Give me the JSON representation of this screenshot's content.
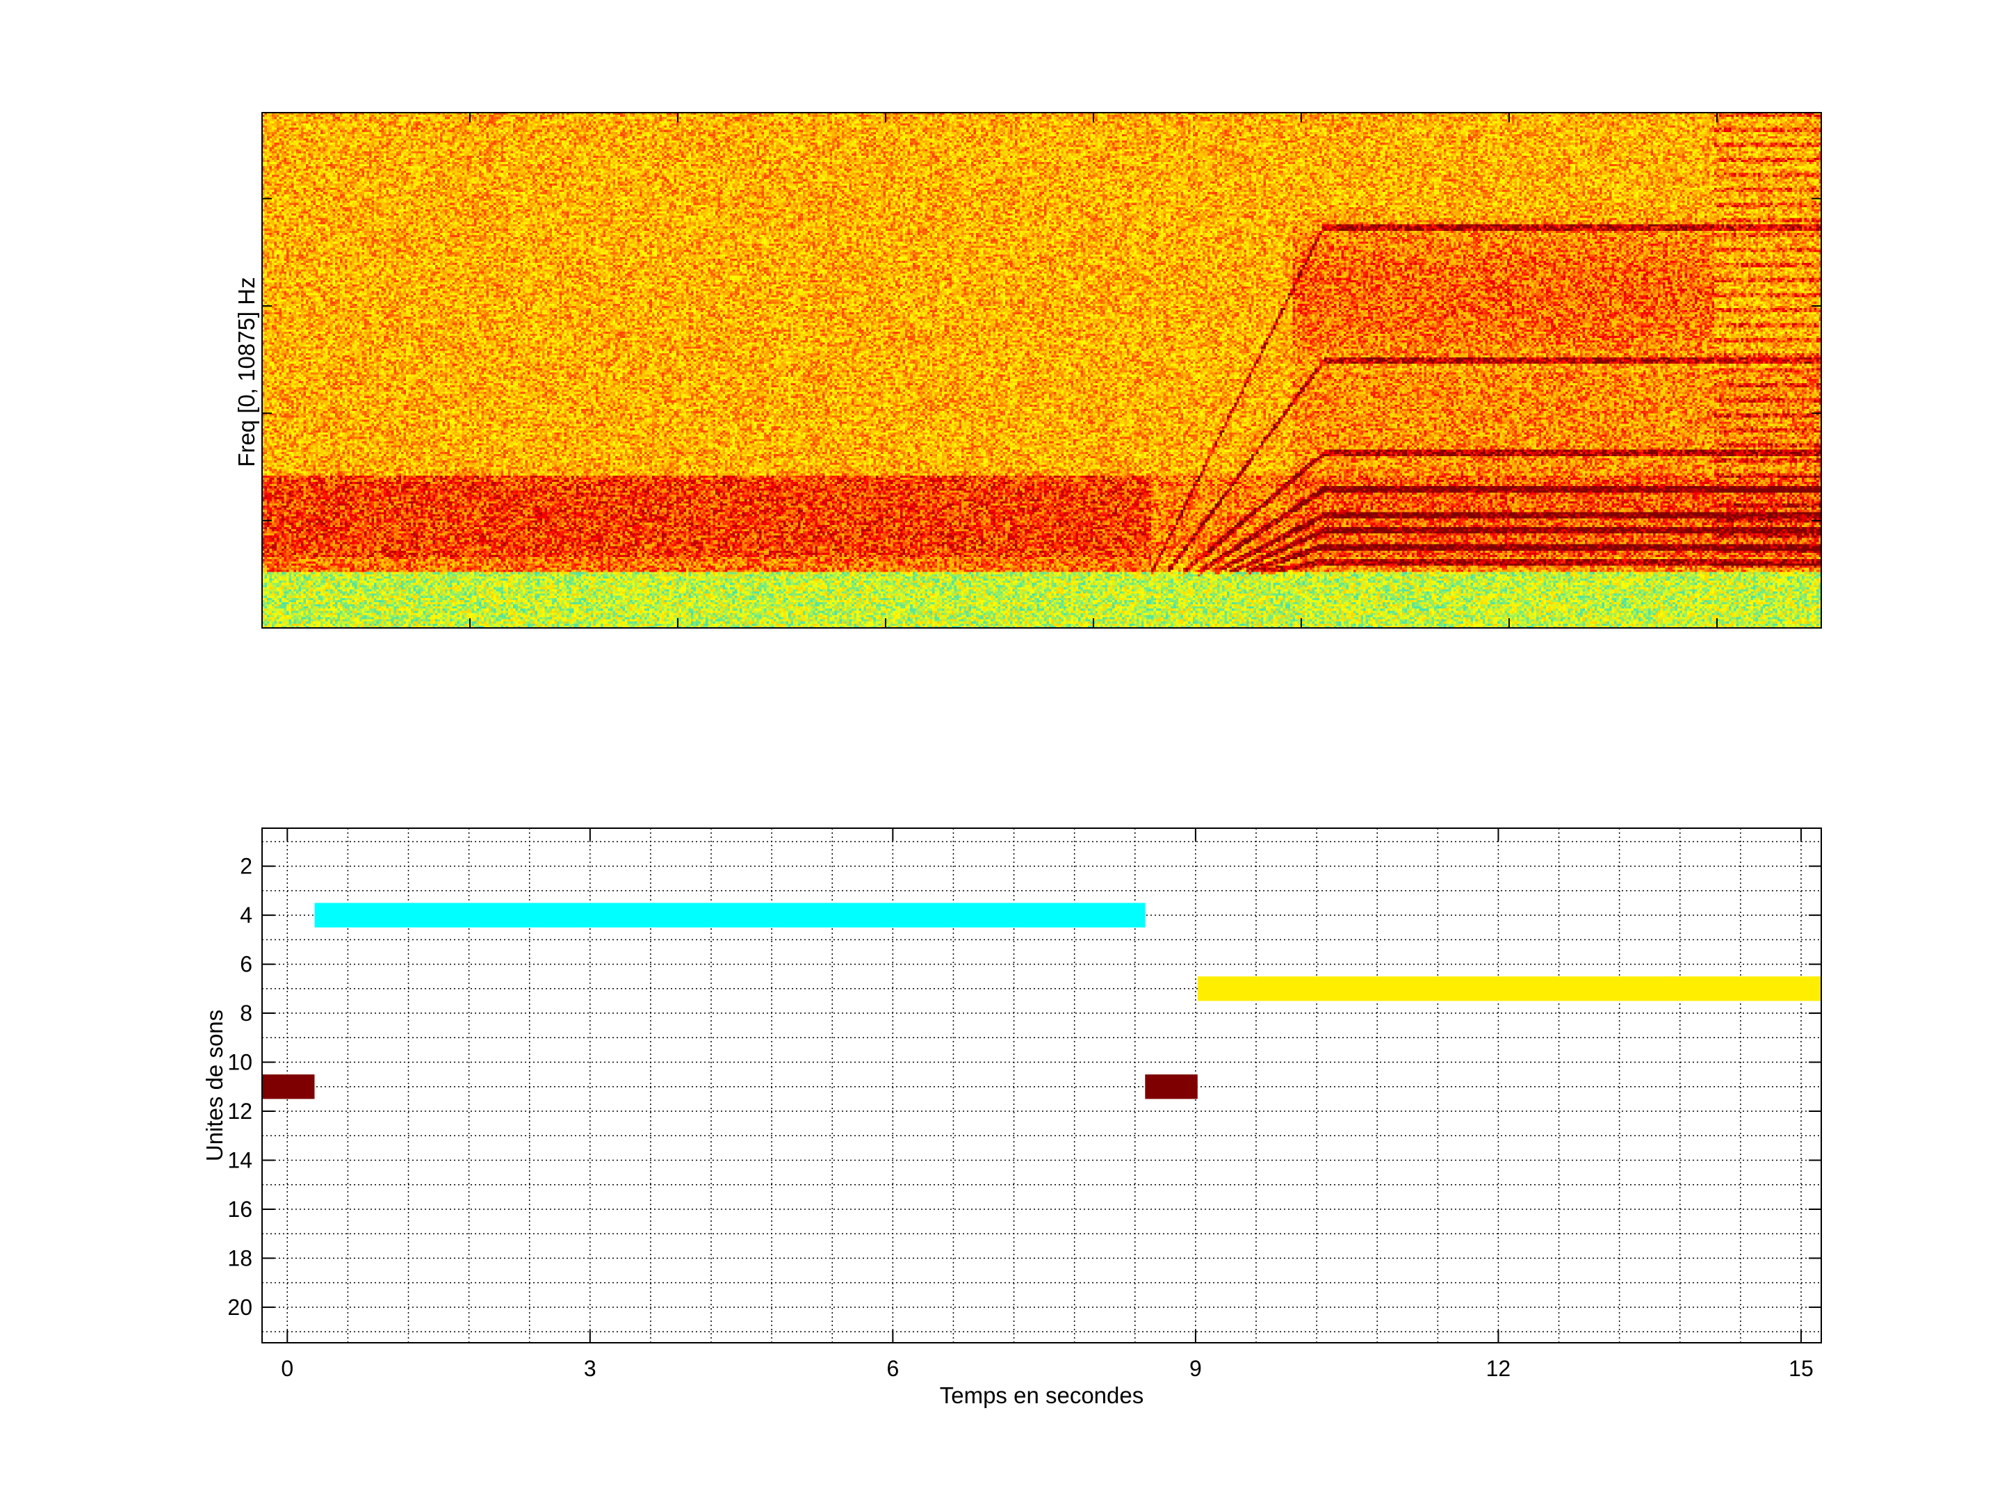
{
  "chart_data": [
    {
      "type": "heatmap",
      "title": "",
      "xlabel": "",
      "ylabel": "Freq [0, 10875] Hz",
      "ylim": [
        0,
        10875
      ],
      "colormap": [
        "#40e0b0",
        "#ffff00",
        "#ffa500",
        "#ff0000",
        "#800000"
      ],
      "description_features": {
        "low_band_red_seconds": [
          0,
          8.5
        ],
        "harmonic_sweep_start_fraction": 0.57,
        "harmonic_plateau_start_fraction": 0.68
      }
    },
    {
      "type": "bar",
      "subtype": "horizontal-range",
      "title": "",
      "xlabel": "Temps en secondes",
      "ylabel": "Unites de sons",
      "xlim": [
        -0.25,
        15.2
      ],
      "ylim": [
        0.45,
        21.45
      ],
      "y_reversed": true,
      "grid": true,
      "xticks": [
        0,
        3,
        6,
        9,
        12,
        15
      ],
      "yticks": [
        2,
        4,
        6,
        8,
        10,
        12,
        14,
        16,
        18,
        20
      ],
      "segments": [
        {
          "unit": 4,
          "start": 0.27,
          "end": 8.5,
          "color": "#00ffff"
        },
        {
          "unit": 7,
          "start": 9.02,
          "end": 15.2,
          "color": "#ffee00"
        },
        {
          "unit": 11,
          "start": -0.25,
          "end": 0.27,
          "color": "#7f0000"
        },
        {
          "unit": 11,
          "start": 8.5,
          "end": 9.02,
          "color": "#7f0000"
        }
      ]
    }
  ]
}
